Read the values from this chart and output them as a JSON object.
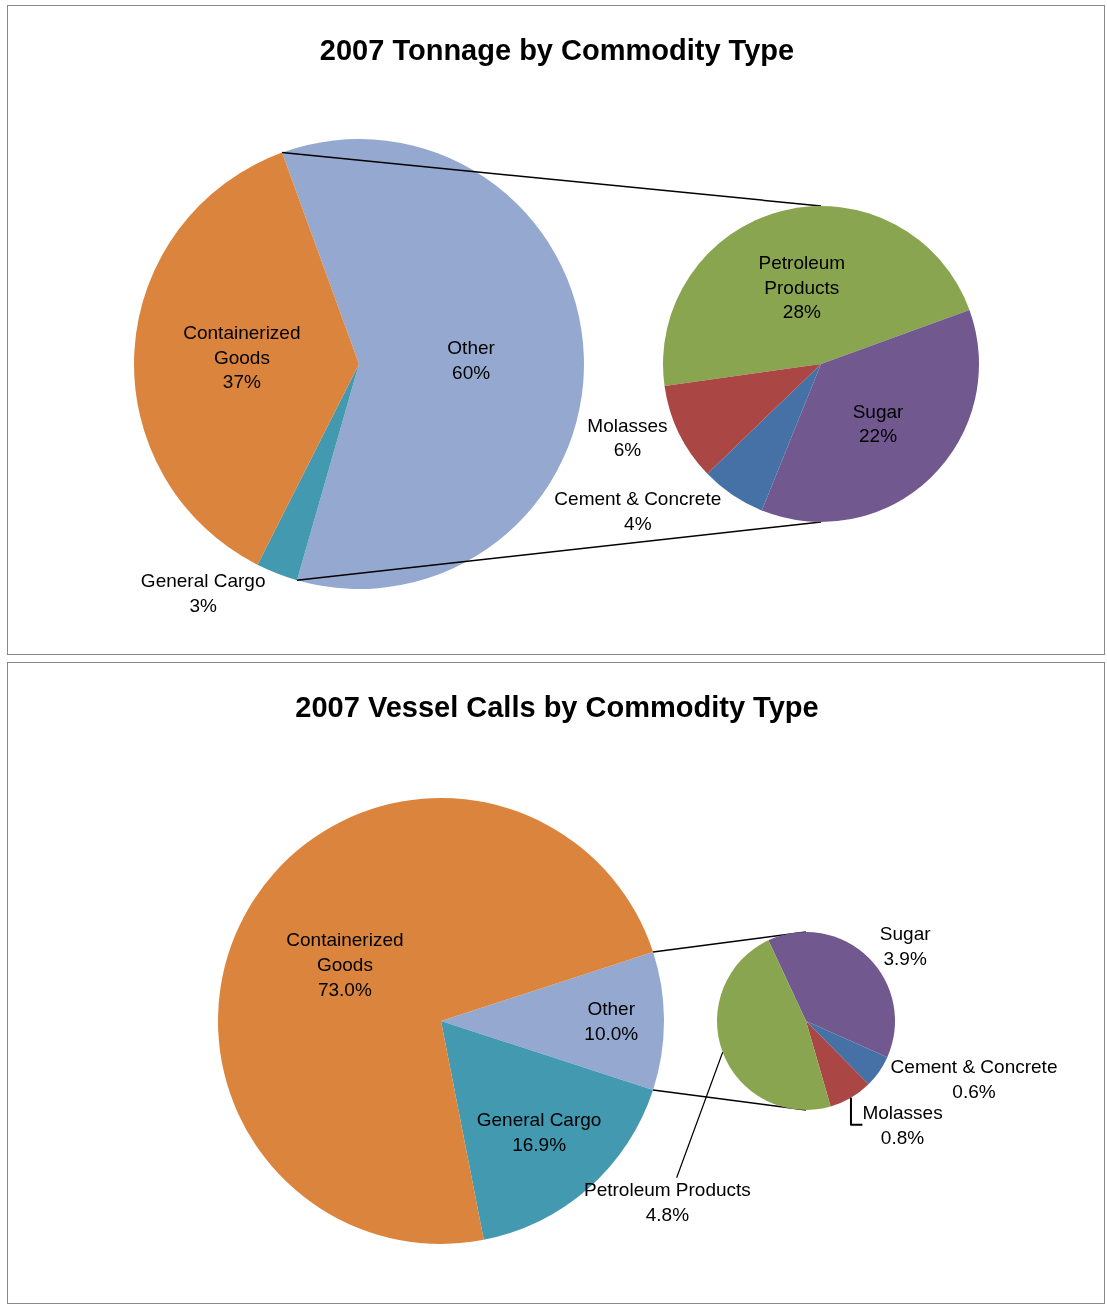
{
  "chart_data": [
    {
      "type": "pie",
      "title": "2007 Tonnage by Commodity Type",
      "categories": [
        "Other",
        "General Cargo",
        "Containerized Goods"
      ],
      "values": [
        60,
        3,
        37
      ],
      "colors": [
        "#95a9d0",
        "#4299b0",
        "#db843d"
      ],
      "value_labels": [
        "60%",
        "3%",
        "37%"
      ]
    },
    {
      "type": "pie",
      "categories": [
        "Petroleum Products",
        "Sugar",
        "Cement & Concrete",
        "Molasses"
      ],
      "values": [
        28,
        22,
        4,
        6
      ],
      "colors": [
        "#8aa54f",
        "#71588f",
        "#4571a7",
        "#aa4643"
      ],
      "value_labels": [
        "28%",
        "22%",
        "4%",
        "6%"
      ]
    },
    {
      "type": "pie",
      "title": "2007 Vessel Calls by Commodity Type",
      "categories": [
        "Other",
        "General Cargo",
        "Containerized Goods"
      ],
      "values": [
        10.0,
        16.9,
        73.0
      ],
      "colors": [
        "#95a9d0",
        "#4299b0",
        "#db843d"
      ],
      "value_labels": [
        "10.0%",
        "16.9%",
        "73.0%"
      ]
    },
    {
      "type": "pie",
      "categories": [
        "Sugar",
        "Cement & Concrete",
        "Molasses",
        "Petroleum Products"
      ],
      "values": [
        3.9,
        0.6,
        0.8,
        4.8
      ],
      "colors": [
        "#71588f",
        "#4571a7",
        "#aa4643",
        "#8aa54f"
      ],
      "value_labels": [
        "3.9%",
        "0.6%",
        "0.8%",
        "4.8%"
      ]
    }
  ]
}
